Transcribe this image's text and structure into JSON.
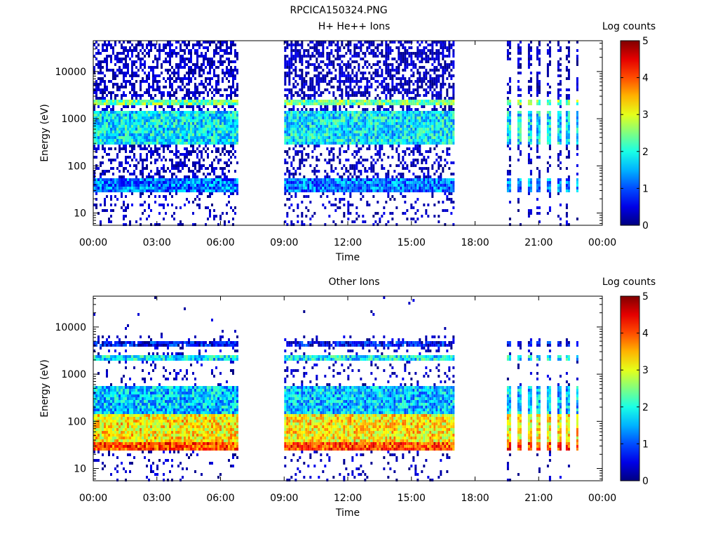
{
  "figure_title": "RPCICA150324.PNG",
  "colorbar": {
    "label": "Log counts",
    "ticks": [
      "0",
      "1",
      "2",
      "3",
      "4",
      "5"
    ]
  },
  "chart_data": [
    {
      "type": "heatmap",
      "title": "H+ He++ Ions",
      "xlabel": "Time",
      "ylabel": "Energy (eV)",
      "x_ticks": [
        "00:00",
        "03:00",
        "06:00",
        "09:00",
        "12:00",
        "15:00",
        "18:00",
        "21:00",
        "00:00"
      ],
      "xlim_hours": [
        0,
        24
      ],
      "y_ticks": [
        "10",
        "100",
        "1000",
        "10000"
      ],
      "ylim_eV": [
        5.5,
        45000
      ],
      "y_scale": "log",
      "color_scale": {
        "label": "Log counts",
        "range": [
          0,
          5
        ],
        "colormap": "jet"
      },
      "data_intervals_hours": [
        [
          0.0,
          6.8
        ],
        [
          9.0,
          17.0
        ],
        [
          19.5,
          22.8
        ]
      ],
      "sparse_interval_hours": [
        19.5,
        22.8
      ],
      "bands": [
        {
          "energy_eV": [
            2000,
            2800
          ],
          "log_counts": 2.4
        },
        {
          "energy_eV": [
            300,
            1500
          ],
          "log_counts": 1.8
        },
        {
          "energy_eV": [
            28,
            60
          ],
          "log_counts": 1.2
        }
      ]
    },
    {
      "type": "heatmap",
      "title": "Other Ions",
      "xlabel": "Time",
      "ylabel": "Energy (eV)",
      "x_ticks": [
        "00:00",
        "03:00",
        "06:00",
        "09:00",
        "12:00",
        "15:00",
        "18:00",
        "21:00",
        "00:00"
      ],
      "xlim_hours": [
        0,
        24
      ],
      "y_ticks": [
        "10",
        "100",
        "1000",
        "10000"
      ],
      "ylim_eV": [
        5.5,
        45000
      ],
      "y_scale": "log",
      "color_scale": {
        "label": "Log counts",
        "range": [
          0,
          5
        ],
        "colormap": "jet"
      },
      "data_intervals_hours": [
        [
          0.0,
          6.8
        ],
        [
          9.0,
          17.0
        ],
        [
          19.5,
          22.8
        ]
      ],
      "sparse_interval_hours": [
        19.5,
        22.8
      ],
      "bands": [
        {
          "energy_eV": [
            4000,
            5500
          ],
          "log_counts": 0.6
        },
        {
          "energy_eV": [
            2000,
            2800
          ],
          "log_counts": 1.8
        },
        {
          "energy_eV": [
            150,
            600
          ],
          "log_counts": 1.6
        },
        {
          "energy_eV": [
            25,
            150
          ],
          "log_counts": 3.2
        },
        {
          "energy_eV": [
            25,
            40
          ],
          "log_counts": 4.0
        }
      ]
    }
  ]
}
